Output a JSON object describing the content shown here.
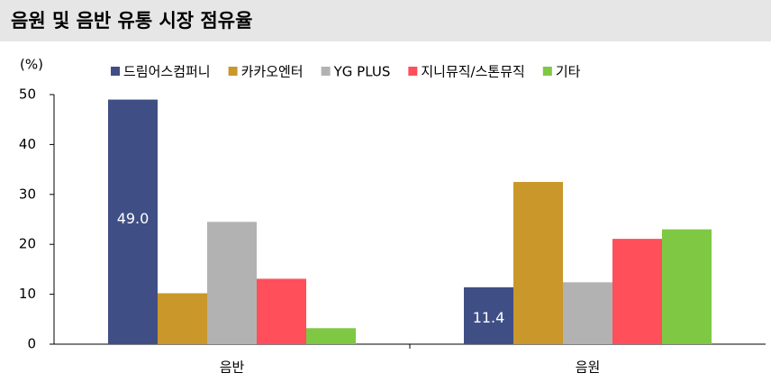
{
  "chart_data": {
    "type": "bar",
    "title": "음원 및 음반 유통 시장 점유율",
    "y_unit": "(%)",
    "categories": [
      "음반",
      "음원"
    ],
    "series": [
      {
        "name": "드림어스컴퍼니",
        "color": "#3f4f86",
        "values": [
          49.0,
          11.4
        ],
        "value_labels": [
          "49.0",
          "11.4"
        ]
      },
      {
        "name": "카카오엔터",
        "color": "#c9972a",
        "values": [
          10.2,
          32.5
        ]
      },
      {
        "name": "YG PLUS",
        "color": "#b2b2b2",
        "values": [
          24.5,
          12.4
        ]
      },
      {
        "name": "지니뮤직/스톤뮤직",
        "color": "#ff4f5a",
        "values": [
          13.1,
          21.1
        ]
      },
      {
        "name": "기타",
        "color": "#7ec843",
        "values": [
          3.2,
          23.0
        ]
      }
    ],
    "ylim": [
      0,
      50
    ],
    "yticks": [
      0,
      10,
      20,
      30,
      40,
      50
    ]
  }
}
